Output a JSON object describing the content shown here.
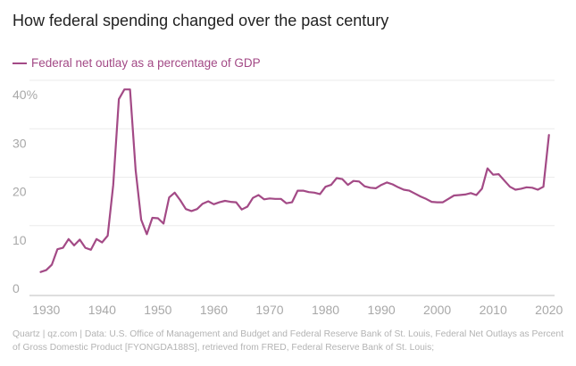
{
  "chart_data": {
    "type": "line",
    "title": "How federal spending changed over the past century",
    "legend": [
      "Federal net outlay as a percentage of GDP"
    ],
    "series": [
      {
        "name": "Federal net outlay as a percentage of GDP",
        "x": [
          1929,
          1930,
          1931,
          1932,
          1933,
          1934,
          1935,
          1936,
          1937,
          1938,
          1939,
          1940,
          1941,
          1942,
          1943,
          1944,
          1945,
          1946,
          1947,
          1948,
          1949,
          1950,
          1951,
          1952,
          1953,
          1954,
          1955,
          1956,
          1957,
          1958,
          1959,
          1960,
          1961,
          1962,
          1963,
          1964,
          1965,
          1966,
          1967,
          1968,
          1969,
          1970,
          1971,
          1972,
          1973,
          1974,
          1975,
          1976,
          1977,
          1978,
          1979,
          1980,
          1981,
          1982,
          1983,
          1984,
          1985,
          1986,
          1987,
          1988,
          1989,
          1990,
          1991,
          1992,
          1993,
          1994,
          1995,
          1996,
          1997,
          1998,
          1999,
          2000,
          2001,
          2002,
          2003,
          2004,
          2005,
          2006,
          2007,
          2008,
          2009,
          2010,
          2011,
          2012,
          2013,
          2014,
          2015,
          2016,
          2017,
          2018,
          2019,
          2020
        ],
        "values": [
          3.0,
          3.4,
          4.5,
          7.7,
          8.0,
          9.8,
          8.5,
          9.7,
          8.0,
          7.6,
          9.8,
          9.1,
          10.5,
          21.0,
          38.7,
          40.7,
          40.7,
          24.0,
          13.8,
          10.8,
          14.2,
          14.1,
          13.0,
          18.4,
          19.4,
          17.8,
          16.0,
          15.6,
          16.0,
          17.1,
          17.6,
          17.0,
          17.4,
          17.7,
          17.5,
          17.4,
          15.9,
          16.5,
          18.3,
          18.9,
          18.0,
          18.2,
          18.1,
          18.1,
          17.2,
          17.4,
          19.8,
          19.8,
          19.5,
          19.4,
          19.1,
          20.6,
          21.0,
          22.4,
          22.2,
          21.0,
          21.8,
          21.7,
          20.7,
          20.4,
          20.3,
          21.0,
          21.5,
          21.1,
          20.5,
          20.0,
          19.8,
          19.2,
          18.6,
          18.1,
          17.5,
          17.4,
          17.4,
          18.1,
          18.8,
          18.9,
          19.0,
          19.3,
          18.9,
          20.2,
          24.4,
          23.1,
          23.2,
          21.9,
          20.6,
          20.0,
          20.2,
          20.5,
          20.4,
          20.0,
          20.6,
          31.3
        ]
      }
    ],
    "x_ticks": [
      "1930",
      "1940",
      "1950",
      "1960",
      "1970",
      "1980",
      "1990",
      "2000",
      "2010",
      "2020"
    ],
    "y_ticks": [
      "0",
      "10",
      "20",
      "30",
      "40%"
    ],
    "xlim": [
      1927,
      2021
    ],
    "ylim": [
      0,
      40
    ],
    "xlabel": "",
    "ylabel": "",
    "grid": true,
    "legend_position": "top-left"
  },
  "source_note": "Quartz | qz.com | Data: U.S. Office of Management and Budget and Federal Reserve Bank of St. Louis, Federal Net Outlays as Percent of Gross Domestic Product [FYONGDA188S], retrieved from FRED, Federal Reserve Bank of St. Louis;",
  "colors": {
    "series": "#a34a86",
    "grid": "#ebebeb",
    "tick": "#a8a8a8"
  }
}
